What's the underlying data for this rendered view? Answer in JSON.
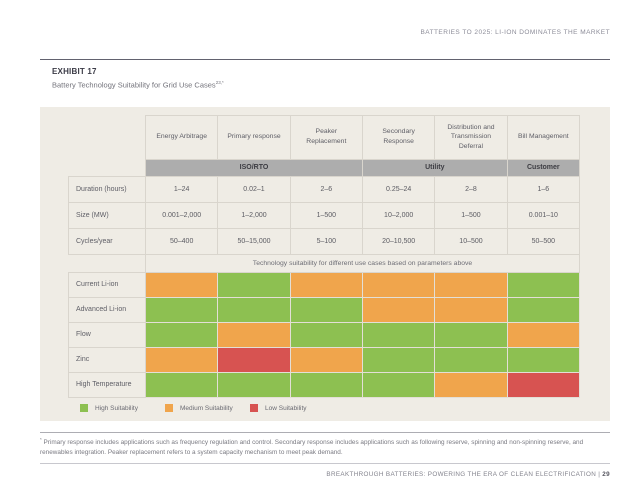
{
  "page": {
    "header_title": "BATTERIES TO 2025: LI-ION DOMINATES THE MARKET",
    "footer_title": "BREAKTHROUGH BATTERIES: POWERING THE ERA OF CLEAN ELECTRIFICATION |",
    "footer_page_number": "29"
  },
  "exhibit": {
    "label": "EXHIBIT 17",
    "title": "Battery Technology Suitability for Grid Use Cases",
    "title_superscript": "23,*"
  },
  "table": {
    "columns": [
      "Energy Arbitrage",
      "Primary response",
      "Peaker Replacement",
      "Secondary Response",
      "Distribution and Transmission Deferral",
      "Bill Management"
    ],
    "groups": [
      {
        "label": "ISO/RTO",
        "span": 3
      },
      {
        "label": "Utility",
        "span": 2
      },
      {
        "label": "Customer",
        "span": 1
      }
    ],
    "parameter_rows": [
      {
        "label": "Duration (hours)",
        "values": [
          "1–24",
          "0.02–1",
          "2–6",
          "0.25–24",
          "2–8",
          "1–6"
        ]
      },
      {
        "label": "Size (MW)",
        "values": [
          "0.001–2,000",
          "1–2,000",
          "1–500",
          "10–2,000",
          "1–500",
          "0.001–10"
        ]
      },
      {
        "label": "Cycles/year",
        "values": [
          "50–400",
          "50–15,000",
          "5–100",
          "20–10,500",
          "10–500",
          "50–500"
        ]
      }
    ],
    "banner": "Technology suitability for different use cases based on parameters above",
    "technology_rows": [
      {
        "label": "Current Li-ion",
        "suitability": [
          "medium",
          "high",
          "medium",
          "medium",
          "medium",
          "high"
        ]
      },
      {
        "label": "Advanced Li-ion",
        "suitability": [
          "high",
          "high",
          "high",
          "medium",
          "medium",
          "high"
        ]
      },
      {
        "label": "Flow",
        "suitability": [
          "high",
          "medium",
          "high",
          "high",
          "high",
          "medium"
        ]
      },
      {
        "label": "Zinc",
        "suitability": [
          "medium",
          "low",
          "medium",
          "high",
          "high",
          "high"
        ]
      },
      {
        "label": "High Temperature",
        "suitability": [
          "high",
          "high",
          "high",
          "high",
          "medium",
          "low"
        ]
      }
    ],
    "legend": [
      {
        "key": "high",
        "label": "High Suitability"
      },
      {
        "key": "medium",
        "label": "Medium Suitability"
      },
      {
        "key": "low",
        "label": "Low Suitability"
      }
    ]
  },
  "suitability_colors": {
    "high": "#8DC051",
    "medium": "#F0A54C",
    "low": "#D75351"
  },
  "footnote": {
    "marker": "*",
    "text": "Primary response includes applications such as frequency regulation and control. Secondary response includes applications such as following reserve, spinning and non-spinning reserve, and renewables integration. Peaker replacement refers to a system capacity mechanism to meet peak demand."
  }
}
